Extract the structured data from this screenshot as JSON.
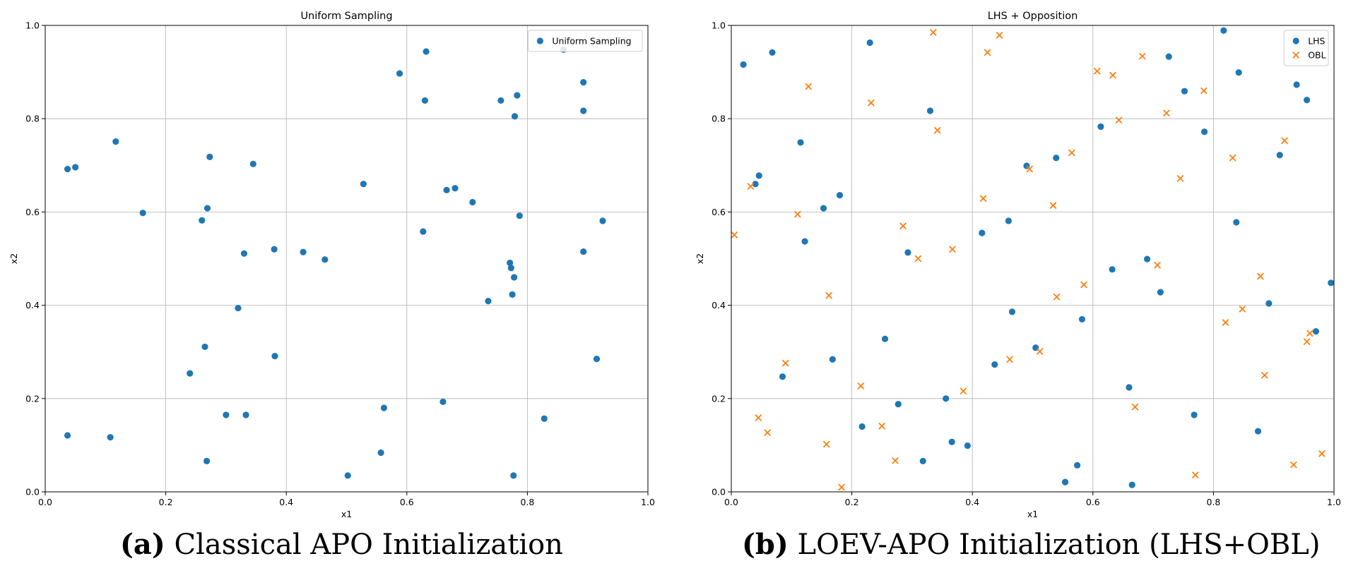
{
  "chart_data": [
    {
      "type": "scatter",
      "title": "Uniform Sampling",
      "xlabel": "x1",
      "ylabel": "x2",
      "xlim": [
        0.0,
        1.0
      ],
      "ylim": [
        0.0,
        1.0
      ],
      "xticks": [
        "0.0",
        "0.2",
        "0.4",
        "0.6",
        "0.8",
        "1.0"
      ],
      "yticks": [
        "0.0",
        "0.2",
        "0.4",
        "0.6",
        "0.8",
        "1.0"
      ],
      "grid": true,
      "legend": "top-right",
      "series": [
        {
          "name": "Uniform Sampling",
          "marker": "circle",
          "color": "#1f77b4",
          "points": [
            [
              0.037,
              0.692
            ],
            [
              0.05,
              0.696
            ],
            [
              0.117,
              0.751
            ],
            [
              0.162,
              0.598
            ],
            [
              0.037,
              0.121
            ],
            [
              0.108,
              0.117
            ],
            [
              0.24,
              0.254
            ],
            [
              0.265,
              0.311
            ],
            [
              0.26,
              0.582
            ],
            [
              0.269,
              0.608
            ],
            [
              0.273,
              0.718
            ],
            [
              0.3,
              0.165
            ],
            [
              0.268,
              0.066
            ],
            [
              0.333,
              0.165
            ],
            [
              0.32,
              0.394
            ],
            [
              0.33,
              0.511
            ],
            [
              0.345,
              0.703
            ],
            [
              0.38,
              0.52
            ],
            [
              0.381,
              0.291
            ],
            [
              0.428,
              0.514
            ],
            [
              0.464,
              0.498
            ],
            [
              0.502,
              0.035
            ],
            [
              0.528,
              0.66
            ],
            [
              0.557,
              0.084
            ],
            [
              0.562,
              0.18
            ],
            [
              0.588,
              0.897
            ],
            [
              0.627,
              0.558
            ],
            [
              0.63,
              0.839
            ],
            [
              0.632,
              0.944
            ],
            [
              0.66,
              0.193
            ],
            [
              0.666,
              0.647
            ],
            [
              0.68,
              0.651
            ],
            [
              0.709,
              0.621
            ],
            [
              0.735,
              0.409
            ],
            [
              0.756,
              0.839
            ],
            [
              0.771,
              0.491
            ],
            [
              0.773,
              0.48
            ],
            [
              0.775,
              0.423
            ],
            [
              0.778,
              0.46
            ],
            [
              0.779,
              0.805
            ],
            [
              0.783,
              0.85
            ],
            [
              0.787,
              0.592
            ],
            [
              0.777,
              0.035
            ],
            [
              0.828,
              0.157
            ],
            [
              0.86,
              0.948
            ],
            [
              0.893,
              0.878
            ],
            [
              0.893,
              0.817
            ],
            [
              0.893,
              0.515
            ],
            [
              0.915,
              0.285
            ],
            [
              0.925,
              0.581
            ]
          ]
        }
      ]
    },
    {
      "type": "scatter",
      "title": "LHS + Opposition",
      "xlabel": "x1",
      "ylabel": "x2",
      "xlim": [
        0.0,
        1.0
      ],
      "ylim": [
        0.0,
        1.0
      ],
      "xticks": [
        "0.0",
        "0.2",
        "0.4",
        "0.6",
        "0.8",
        "1.0"
      ],
      "yticks": [
        "0.0",
        "0.2",
        "0.4",
        "0.6",
        "0.8",
        "1.0"
      ],
      "grid": true,
      "legend": "top-right",
      "series": [
        {
          "name": "LHS",
          "marker": "circle",
          "color": "#1f77b4",
          "points": [
            [
              0.02,
              0.916
            ],
            [
              0.068,
              0.942
            ],
            [
              0.04,
              0.66
            ],
            [
              0.046,
              0.678
            ],
            [
              0.115,
              0.749
            ],
            [
              0.122,
              0.537
            ],
            [
              0.153,
              0.608
            ],
            [
              0.18,
              0.636
            ],
            [
              0.085,
              0.247
            ],
            [
              0.168,
              0.284
            ],
            [
              0.23,
              0.963
            ],
            [
              0.217,
              0.14
            ],
            [
              0.255,
              0.328
            ],
            [
              0.277,
              0.188
            ],
            [
              0.293,
              0.513
            ],
            [
              0.318,
              0.066
            ],
            [
              0.33,
              0.817
            ],
            [
              0.356,
              0.2
            ],
            [
              0.366,
              0.107
            ],
            [
              0.392,
              0.099
            ],
            [
              0.416,
              0.555
            ],
            [
              0.437,
              0.273
            ],
            [
              0.46,
              0.581
            ],
            [
              0.466,
              0.386
            ],
            [
              0.49,
              0.699
            ],
            [
              0.505,
              0.309
            ],
            [
              0.539,
              0.716
            ],
            [
              0.554,
              0.021
            ],
            [
              0.574,
              0.057
            ],
            [
              0.582,
              0.37
            ],
            [
              0.613,
              0.783
            ],
            [
              0.632,
              0.477
            ],
            [
              0.66,
              0.224
            ],
            [
              0.665,
              0.015
            ],
            [
              0.69,
              0.499
            ],
            [
              0.712,
              0.428
            ],
            [
              0.726,
              0.933
            ],
            [
              0.752,
              0.859
            ],
            [
              0.768,
              0.165
            ],
            [
              0.785,
              0.772
            ],
            [
              0.817,
              0.989
            ],
            [
              0.838,
              0.578
            ],
            [
              0.842,
              0.899
            ],
            [
              0.874,
              0.13
            ],
            [
              0.892,
              0.404
            ],
            [
              0.91,
              0.722
            ],
            [
              0.938,
              0.873
            ],
            [
              0.955,
              0.84
            ],
            [
              0.97,
              0.344
            ],
            [
              0.995,
              0.448
            ]
          ]
        },
        {
          "name": "OBL",
          "marker": "x",
          "color": "#ff7f0e",
          "points": [
            [
              0.005,
              0.551
            ],
            [
              0.032,
              0.655
            ],
            [
              0.045,
              0.159
            ],
            [
              0.06,
              0.127
            ],
            [
              0.09,
              0.276
            ],
            [
              0.11,
              0.595
            ],
            [
              0.128,
              0.869
            ],
            [
              0.158,
              0.102
            ],
            [
              0.162,
              0.421
            ],
            [
              0.183,
              0.01
            ],
            [
              0.215,
              0.227
            ],
            [
              0.232,
              0.834
            ],
            [
              0.25,
              0.141
            ],
            [
              0.272,
              0.067
            ],
            [
              0.285,
              0.57
            ],
            [
              0.31,
              0.5
            ],
            [
              0.335,
              0.985
            ],
            [
              0.342,
              0.775
            ],
            [
              0.367,
              0.52
            ],
            [
              0.385,
              0.216
            ],
            [
              0.418,
              0.629
            ],
            [
              0.425,
              0.942
            ],
            [
              0.445,
              0.979
            ],
            [
              0.462,
              0.284
            ],
            [
              0.495,
              0.692
            ],
            [
              0.512,
              0.301
            ],
            [
              0.534,
              0.614
            ],
            [
              0.54,
              0.418
            ],
            [
              0.565,
              0.727
            ],
            [
              0.585,
              0.444
            ],
            [
              0.607,
              0.902
            ],
            [
              0.633,
              0.893
            ],
            [
              0.643,
              0.797
            ],
            [
              0.67,
              0.182
            ],
            [
              0.682,
              0.934
            ],
            [
              0.707,
              0.486
            ],
            [
              0.722,
              0.812
            ],
            [
              0.745,
              0.672
            ],
            [
              0.77,
              0.036
            ],
            [
              0.784,
              0.86
            ],
            [
              0.82,
              0.363
            ],
            [
              0.832,
              0.716
            ],
            [
              0.848,
              0.392
            ],
            [
              0.878,
              0.462
            ],
            [
              0.885,
              0.25
            ],
            [
              0.918,
              0.753
            ],
            [
              0.933,
              0.058
            ],
            [
              0.955,
              0.322
            ],
            [
              0.96,
              0.34
            ],
            [
              0.98,
              0.082
            ]
          ]
        }
      ]
    }
  ],
  "captions": [
    {
      "label": "(a)",
      "text": " Classical APO Initialization"
    },
    {
      "label": "(b)",
      "text": " LOEV-APO Initialization (LHS+OBL)"
    }
  ]
}
